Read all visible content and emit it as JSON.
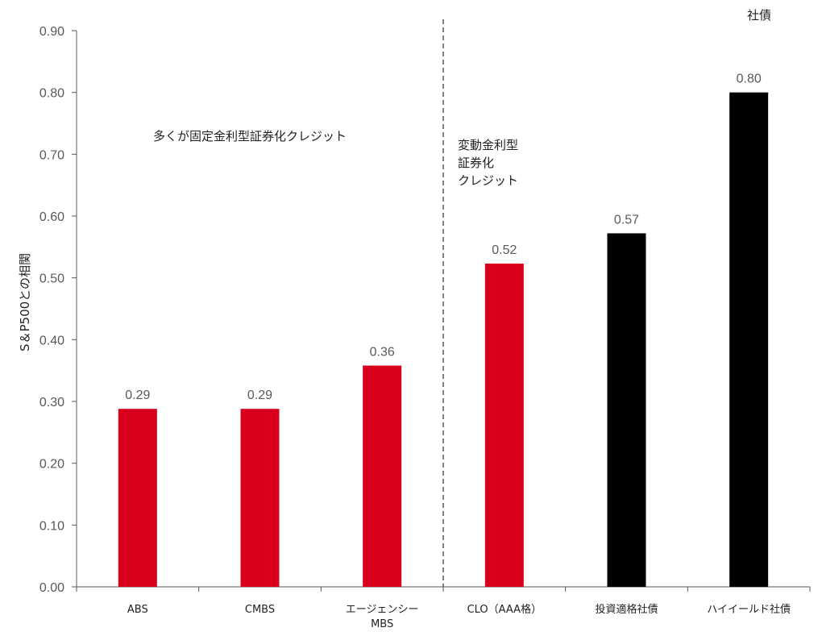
{
  "chart_data": {
    "type": "bar",
    "title": "",
    "xlabel": "",
    "ylabel": "S＆P500との相関",
    "ylim": [
      0,
      0.9
    ],
    "yticks": [
      "0.00",
      "0.10",
      "0.20",
      "0.30",
      "0.40",
      "0.50",
      "0.60",
      "0.70",
      "0.80",
      "0.90"
    ],
    "grid": false,
    "categories": [
      [
        "ABS"
      ],
      [
        "CMBS"
      ],
      [
        "エージェンシー",
        "MBS"
      ],
      [
        "CLO（AAA格）"
      ],
      [
        "投資適格社債"
      ],
      [
        "ハイイールド社債"
      ]
    ],
    "values": [
      0.29,
      0.29,
      0.36,
      0.52,
      0.57,
      0.8
    ],
    "value_labels": [
      "0.29",
      "0.29",
      "0.36",
      "0.52",
      "0.57",
      "0.80"
    ],
    "value_heights": [
      0.288,
      0.288,
      0.358,
      0.523,
      0.572,
      0.8
    ],
    "bar_colors": [
      "#d9001b",
      "#d9001b",
      "#d9001b",
      "#d9001b",
      "#000000",
      "#000000"
    ],
    "divider_after_category": 3,
    "annotations": [
      {
        "text": [
          "多くが固定金利型証券化クレジット"
        ],
        "region": "left"
      },
      {
        "text": [
          "変動金利型",
          "証券化",
          "クレジット"
        ],
        "region": "right"
      },
      {
        "text": [
          "社債"
        ],
        "region": "top-right"
      }
    ]
  },
  "colors": {
    "red": "#d9001b",
    "black": "#000000",
    "axis": "#595959",
    "divider": "#595959"
  }
}
